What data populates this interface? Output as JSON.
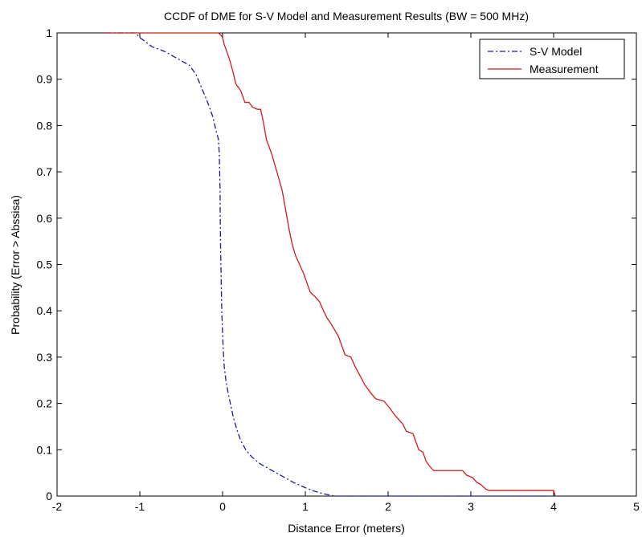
{
  "chart_data": {
    "type": "line",
    "title": "CCDF of DME for S-V Model and Measurement Results (BW = 500 MHz)",
    "xlabel": "Distance Error (meters)",
    "ylabel": "Probability (Error > Abssisa)",
    "xlim": [
      -2,
      5
    ],
    "ylim": [
      0,
      1
    ],
    "xticks": [
      -2,
      -1,
      0,
      1,
      2,
      3,
      4,
      5
    ],
    "xtick_labels": [
      "-2",
      "-1",
      "0",
      "1",
      "2",
      "3",
      "4",
      "5"
    ],
    "yticks": [
      0,
      0.1,
      0.2,
      0.3,
      0.4,
      0.5,
      0.6,
      0.7,
      0.8,
      0.9,
      1
    ],
    "ytick_labels": [
      "0",
      "0.1",
      "0.2",
      "0.3",
      "0.4",
      "0.5",
      "0.6",
      "0.7",
      "0.8",
      "0.9",
      "1"
    ],
    "grid": false,
    "legend_position": "top-right",
    "series": [
      {
        "name": "S-V Model",
        "color": "#1a1aa6",
        "line_style": "dash-dot",
        "points": [
          [
            -1.41,
            1.0
          ],
          [
            -1.05,
            1.0
          ],
          [
            -1.0,
            0.99
          ],
          [
            -0.85,
            0.97
          ],
          [
            -0.7,
            0.96
          ],
          [
            -0.55,
            0.945
          ],
          [
            -0.4,
            0.93
          ],
          [
            -0.32,
            0.91
          ],
          [
            -0.25,
            0.88
          ],
          [
            -0.18,
            0.85
          ],
          [
            -0.12,
            0.82
          ],
          [
            -0.08,
            0.79
          ],
          [
            -0.05,
            0.77
          ],
          [
            -0.04,
            0.74
          ],
          [
            -0.035,
            0.7
          ],
          [
            -0.03,
            0.66
          ],
          [
            -0.028,
            0.6
          ],
          [
            -0.025,
            0.55
          ],
          [
            -0.02,
            0.5
          ],
          [
            -0.015,
            0.45
          ],
          [
            -0.01,
            0.4
          ],
          [
            0.0,
            0.35
          ],
          [
            0.01,
            0.31
          ],
          [
            0.02,
            0.28
          ],
          [
            0.04,
            0.25
          ],
          [
            0.07,
            0.22
          ],
          [
            0.1,
            0.195
          ],
          [
            0.13,
            0.17
          ],
          [
            0.17,
            0.145
          ],
          [
            0.22,
            0.12
          ],
          [
            0.28,
            0.1
          ],
          [
            0.35,
            0.085
          ],
          [
            0.45,
            0.07
          ],
          [
            0.55,
            0.06
          ],
          [
            0.7,
            0.045
          ],
          [
            0.85,
            0.03
          ],
          [
            1.0,
            0.018
          ],
          [
            1.12,
            0.01
          ],
          [
            1.22,
            0.005
          ],
          [
            1.35,
            0.0
          ],
          [
            4.0,
            0.0
          ]
        ]
      },
      {
        "name": "Measurement",
        "color": "#d41a1a",
        "line_style": "solid",
        "points": [
          [
            -1.41,
            1.0
          ],
          [
            -0.05,
            1.0
          ],
          [
            -0.02,
            0.995
          ],
          [
            0.0,
            0.99
          ],
          [
            0.02,
            0.975
          ],
          [
            0.05,
            0.96
          ],
          [
            0.08,
            0.945
          ],
          [
            0.12,
            0.92
          ],
          [
            0.16,
            0.89
          ],
          [
            0.18,
            0.885
          ],
          [
            0.22,
            0.875
          ],
          [
            0.25,
            0.86
          ],
          [
            0.27,
            0.85
          ],
          [
            0.32,
            0.85
          ],
          [
            0.36,
            0.84
          ],
          [
            0.42,
            0.835
          ],
          [
            0.46,
            0.835
          ],
          [
            0.49,
            0.81
          ],
          [
            0.51,
            0.79
          ],
          [
            0.53,
            0.77
          ],
          [
            0.56,
            0.755
          ],
          [
            0.6,
            0.735
          ],
          [
            0.64,
            0.71
          ],
          [
            0.68,
            0.685
          ],
          [
            0.72,
            0.66
          ],
          [
            0.75,
            0.63
          ],
          [
            0.78,
            0.6
          ],
          [
            0.81,
            0.57
          ],
          [
            0.84,
            0.545
          ],
          [
            0.88,
            0.52
          ],
          [
            0.93,
            0.5
          ],
          [
            0.98,
            0.48
          ],
          [
            1.02,
            0.46
          ],
          [
            1.06,
            0.44
          ],
          [
            1.12,
            0.43
          ],
          [
            1.17,
            0.42
          ],
          [
            1.22,
            0.4
          ],
          [
            1.26,
            0.385
          ],
          [
            1.3,
            0.375
          ],
          [
            1.35,
            0.36
          ],
          [
            1.4,
            0.345
          ],
          [
            1.45,
            0.32
          ],
          [
            1.48,
            0.305
          ],
          [
            1.55,
            0.3
          ],
          [
            1.6,
            0.28
          ],
          [
            1.66,
            0.26
          ],
          [
            1.72,
            0.24
          ],
          [
            1.78,
            0.225
          ],
          [
            1.85,
            0.21
          ],
          [
            1.95,
            0.205
          ],
          [
            2.02,
            0.19
          ],
          [
            2.08,
            0.175
          ],
          [
            2.13,
            0.165
          ],
          [
            2.18,
            0.155
          ],
          [
            2.22,
            0.14
          ],
          [
            2.3,
            0.135
          ],
          [
            2.34,
            0.115
          ],
          [
            2.37,
            0.1
          ],
          [
            2.42,
            0.095
          ],
          [
            2.46,
            0.075
          ],
          [
            2.5,
            0.065
          ],
          [
            2.55,
            0.055
          ],
          [
            2.9,
            0.055
          ],
          [
            2.95,
            0.045
          ],
          [
            3.02,
            0.04
          ],
          [
            3.07,
            0.03
          ],
          [
            3.12,
            0.025
          ],
          [
            3.18,
            0.015
          ],
          [
            3.22,
            0.012
          ],
          [
            4.0,
            0.012
          ],
          [
            4.02,
            0.0
          ]
        ]
      }
    ]
  }
}
